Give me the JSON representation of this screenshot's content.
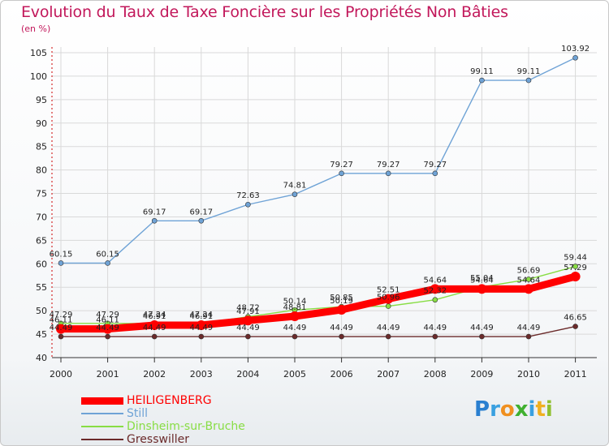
{
  "chart_data": {
    "type": "line",
    "title": "Evolution du Taux de Taxe Foncière sur les Propriétés Non Bâties",
    "subtitle": "(en %)",
    "categories": [
      "2000",
      "2001",
      "2002",
      "2003",
      "2004",
      "2005",
      "2006",
      "2007",
      "2008",
      "2009",
      "2010",
      "2011"
    ],
    "ylim": [
      40,
      105
    ],
    "yticks": [
      40,
      45,
      50,
      55,
      60,
      65,
      70,
      75,
      80,
      85,
      90,
      95,
      100,
      105
    ],
    "series": [
      {
        "name": "Gresswiller",
        "color": "#6b2a2a",
        "values": [
          44.49,
          44.49,
          44.49,
          44.49,
          44.49,
          44.49,
          44.49,
          44.49,
          44.49,
          44.49,
          44.49,
          46.65
        ],
        "labels": [
          "44.49",
          "44.49",
          "44.49",
          "44.49",
          "44.49",
          "44.49",
          "44.49",
          "44.49",
          "44.49",
          "44.49",
          "44.49",
          "46.65"
        ]
      },
      {
        "name": "Dinsheim-sur-Bruche",
        "color": "#88dd44",
        "values": [
          47.29,
          47.29,
          47.24,
          47.24,
          48.72,
          50.14,
          50.85,
          50.96,
          52.32,
          55.04,
          56.69,
          59.44
        ],
        "labels": [
          "47.29",
          "47.29",
          "47.24",
          "47.24",
          "48.72",
          "50.14",
          "50.85",
          "50.96",
          "52.32",
          "55.04",
          "56.69",
          "59.44"
        ]
      },
      {
        "name": "Still",
        "color": "#6fa3d6",
        "values": [
          60.15,
          60.15,
          69.17,
          69.17,
          72.63,
          74.81,
          79.27,
          79.27,
          79.27,
          99.11,
          99.11,
          103.92
        ],
        "labels": [
          "60.15",
          "60.15",
          "69.17",
          "69.17",
          "72.63",
          "74.81",
          "79.27",
          "79.27",
          "79.27",
          "99.11",
          "99.11",
          "103.92"
        ]
      },
      {
        "name": "HEILIGENBERG",
        "color": "#ff0000",
        "values": [
          46.11,
          46.11,
          46.91,
          46.91,
          47.91,
          48.81,
          50.19,
          52.51,
          54.64,
          54.64,
          54.64,
          57.29
        ],
        "labels": [
          "46.11",
          "46.11",
          "46.91",
          "46.91",
          "47.91",
          "48.81",
          "50.19",
          "52.51",
          "54.64",
          "54.64",
          "54.64",
          "57.29"
        ]
      }
    ]
  },
  "legend": [
    {
      "name": "HEILIGENBERG",
      "color": "#ff0000",
      "size": "thick"
    },
    {
      "name": "Still",
      "color": "#6fa3d6",
      "size": "thin"
    },
    {
      "name": "Dinsheim-sur-Bruche",
      "color": "#88dd44",
      "size": "thin"
    },
    {
      "name": "Gresswiller",
      "color": "#6b2a2a",
      "size": "thin"
    }
  ],
  "logo": {
    "letters": [
      "P",
      "r",
      "o",
      "x",
      "i",
      "t",
      "i"
    ],
    "colors": [
      "#2a7fd0",
      "#3aa0e0",
      "#f09020",
      "#40b030",
      "#3aa0e0",
      "#f0b020",
      "#90c030"
    ]
  }
}
